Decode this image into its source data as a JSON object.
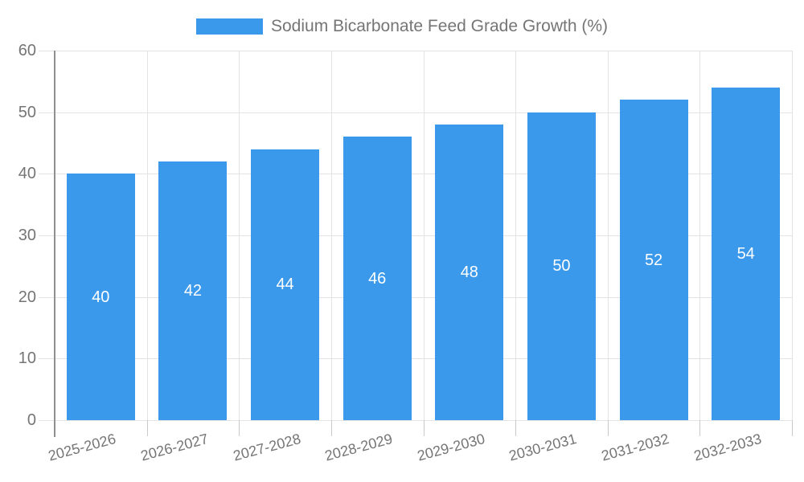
{
  "legend": {
    "label": "Sodium Bicarbonate Feed Grade Growth (%)"
  },
  "chart_data": {
    "type": "bar",
    "title": "Sodium Bicarbonate Feed Grade Growth (%)",
    "categories": [
      "2025-2026",
      "2026-2027",
      "2027-2028",
      "2028-2029",
      "2029-2030",
      "2030-2031",
      "2031-2032",
      "2032-2033"
    ],
    "values": [
      40,
      42,
      44,
      46,
      48,
      50,
      52,
      54
    ],
    "bar_labels": [
      "40",
      "42",
      "44",
      "46",
      "48",
      "50",
      "52",
      "54"
    ],
    "xlabel": "",
    "ylabel": "",
    "ylim": [
      0,
      60
    ],
    "yticks": [
      0,
      10,
      20,
      30,
      40,
      50,
      60
    ],
    "grid": true,
    "legend_position": "top-center",
    "colors": {
      "bar": "#3b99ec",
      "bar_label": "#ffffff",
      "axis_text": "#757575",
      "gridline": "#e3e3e3",
      "axis_line": "#8f8f8f",
      "tick": "#c9c9c9",
      "background": "#ffffff"
    }
  }
}
